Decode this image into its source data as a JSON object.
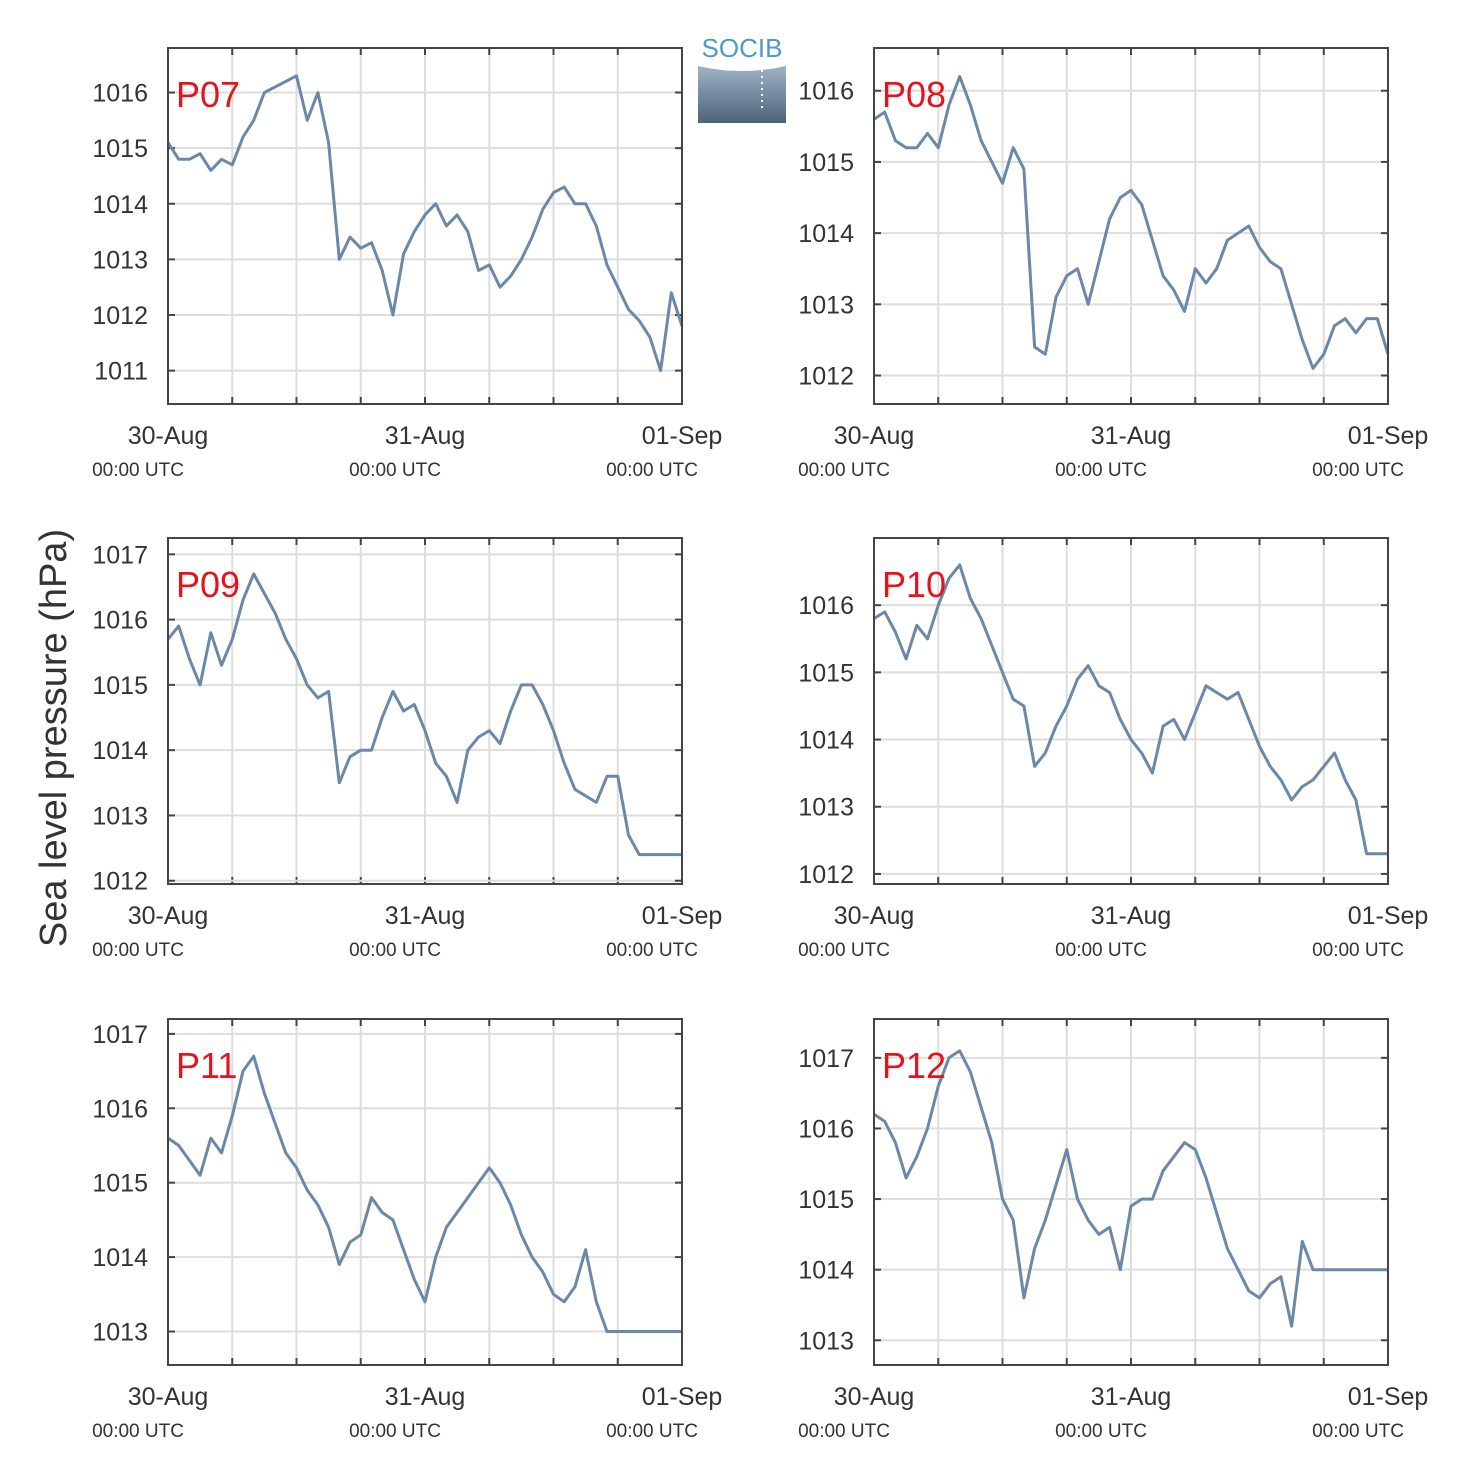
{
  "logo": {
    "text": "SOCIB"
  },
  "chart_data": {
    "type": "line",
    "ylabel": "Sea level pressure (hPa)",
    "line_color": "#6a89a8",
    "grid": true,
    "x_ticks": [
      {
        "date": "30-Aug",
        "time": "00:00 UTC"
      },
      {
        "date": "31-Aug",
        "time": "00:00 UTC"
      },
      {
        "date": "01-Sep",
        "time": "00:00 UTC"
      }
    ],
    "x_range": [
      "2030-08-30T00:00",
      "2030-09-01T00:00"
    ],
    "panels": [
      {
        "name": "P07",
        "ylim": [
          1010.4,
          1016.8
        ],
        "yticks": [
          1011,
          1012,
          1013,
          1014,
          1015,
          1016
        ],
        "x_hours": [
          0,
          1,
          2,
          3,
          4,
          5,
          6,
          7,
          8,
          9,
          10,
          11,
          12,
          13,
          14,
          15,
          16,
          17,
          18,
          19,
          20,
          21,
          22,
          23,
          24,
          25,
          26,
          27,
          28,
          29,
          30,
          31,
          32,
          33,
          34,
          35,
          36,
          37,
          38,
          39,
          40,
          41,
          42,
          43,
          44,
          45,
          46,
          47,
          48
        ],
        "values": [
          1015.1,
          1014.8,
          1014.8,
          1014.9,
          1014.6,
          1014.8,
          1014.7,
          1015.2,
          1015.5,
          1016.0,
          1016.1,
          1016.2,
          1016.3,
          1015.5,
          1016.0,
          1015.1,
          1013.0,
          1013.4,
          1013.2,
          1013.3,
          1012.8,
          1012.0,
          1013.1,
          1013.5,
          1013.8,
          1014.0,
          1013.6,
          1013.8,
          1013.5,
          1012.8,
          1012.9,
          1012.5,
          1012.7,
          1013.0,
          1013.4,
          1013.9,
          1014.2,
          1014.3,
          1014.0,
          1014.0,
          1013.6,
          1012.9,
          1012.5,
          1012.1,
          1011.9,
          1011.6,
          1011.0,
          1012.4,
          1011.8
        ]
      },
      {
        "name": "P08",
        "ylim": [
          1011.6,
          1016.6
        ],
        "yticks": [
          1012,
          1013,
          1014,
          1015,
          1016
        ],
        "x_hours": [
          0,
          1,
          2,
          3,
          4,
          5,
          6,
          7,
          8,
          9,
          10,
          11,
          12,
          13,
          14,
          15,
          16,
          17,
          18,
          19,
          20,
          21,
          22,
          23,
          24,
          25,
          26,
          27,
          28,
          29,
          30,
          31,
          32,
          33,
          34,
          35,
          36,
          37,
          38,
          39,
          40,
          41,
          42,
          43,
          44,
          45,
          46,
          47,
          48
        ],
        "values": [
          1015.6,
          1015.7,
          1015.3,
          1015.2,
          1015.2,
          1015.4,
          1015.2,
          1015.8,
          1016.2,
          1015.8,
          1015.3,
          1015.0,
          1014.7,
          1015.2,
          1014.9,
          1012.4,
          1012.3,
          1013.1,
          1013.4,
          1013.5,
          1013.0,
          1013.6,
          1014.2,
          1014.5,
          1014.6,
          1014.4,
          1013.9,
          1013.4,
          1013.2,
          1012.9,
          1013.5,
          1013.3,
          1013.5,
          1013.9,
          1014.0,
          1014.1,
          1013.8,
          1013.6,
          1013.5,
          1013.0,
          1012.5,
          1012.1,
          1012.3,
          1012.7,
          1012.8,
          1012.6,
          1012.8,
          1012.8,
          1012.3
        ]
      },
      {
        "name": "P09",
        "ylim": [
          1011.95,
          1017.25
        ],
        "yticks": [
          1012,
          1013,
          1014,
          1015,
          1016,
          1017
        ],
        "x_hours": [
          0,
          1,
          2,
          3,
          4,
          5,
          6,
          7,
          8,
          9,
          10,
          11,
          12,
          13,
          14,
          15,
          16,
          17,
          18,
          19,
          20,
          21,
          22,
          23,
          24,
          25,
          26,
          27,
          28,
          29,
          30,
          31,
          32,
          33,
          34,
          35,
          36,
          37,
          38,
          39,
          40,
          41,
          42,
          43,
          44,
          45,
          46,
          47,
          48
        ],
        "values": [
          1015.7,
          1015.9,
          1015.4,
          1015.0,
          1015.8,
          1015.3,
          1015.7,
          1016.3,
          1016.7,
          1016.4,
          1016.1,
          1015.7,
          1015.4,
          1015.0,
          1014.8,
          1014.9,
          1013.5,
          1013.9,
          1014.0,
          1014.0,
          1014.5,
          1014.9,
          1014.6,
          1014.7,
          1014.3,
          1013.8,
          1013.6,
          1013.2,
          1014.0,
          1014.2,
          1014.3,
          1014.1,
          1014.6,
          1015.0,
          1015.0,
          1014.7,
          1014.3,
          1013.8,
          1013.4,
          1013.3,
          1013.2,
          1013.6,
          1013.6,
          1012.7,
          1012.4,
          1012.4,
          1012.4,
          1012.4,
          1012.4
        ]
      },
      {
        "name": "P10",
        "ylim": [
          1011.85,
          1017.0
        ],
        "yticks": [
          1012,
          1013,
          1014,
          1015,
          1016
        ],
        "x_hours": [
          0,
          1,
          2,
          3,
          4,
          5,
          6,
          7,
          8,
          9,
          10,
          11,
          12,
          13,
          14,
          15,
          16,
          17,
          18,
          19,
          20,
          21,
          22,
          23,
          24,
          25,
          26,
          27,
          28,
          29,
          30,
          31,
          32,
          33,
          34,
          35,
          36,
          37,
          38,
          39,
          40,
          41,
          42,
          43,
          44,
          45,
          46,
          47,
          48
        ],
        "values": [
          1015.8,
          1015.9,
          1015.6,
          1015.2,
          1015.7,
          1015.5,
          1016.0,
          1016.4,
          1016.6,
          1016.1,
          1015.8,
          1015.4,
          1015.0,
          1014.6,
          1014.5,
          1013.6,
          1013.8,
          1014.2,
          1014.5,
          1014.9,
          1015.1,
          1014.8,
          1014.7,
          1014.3,
          1014.0,
          1013.8,
          1013.5,
          1014.2,
          1014.3,
          1014.0,
          1014.4,
          1014.8,
          1014.7,
          1014.6,
          1014.7,
          1014.3,
          1013.9,
          1013.6,
          1013.4,
          1013.1,
          1013.3,
          1013.4,
          1013.6,
          1013.8,
          1013.4,
          1013.1,
          1012.3,
          1012.3,
          1012.3
        ]
      },
      {
        "name": "P11",
        "ylim": [
          1012.55,
          1017.2
        ],
        "yticks": [
          1013,
          1014,
          1015,
          1016,
          1017
        ],
        "x_hours": [
          0,
          1,
          2,
          3,
          4,
          5,
          6,
          7,
          8,
          9,
          10,
          11,
          12,
          13,
          14,
          15,
          16,
          17,
          18,
          19,
          20,
          21,
          22,
          23,
          24,
          25,
          26,
          27,
          28,
          29,
          30,
          31,
          32,
          33,
          34,
          35,
          36,
          37,
          38,
          39,
          40,
          41,
          42,
          43,
          44,
          45,
          46,
          47,
          48
        ],
        "values": [
          1015.6,
          1015.5,
          1015.3,
          1015.1,
          1015.6,
          1015.4,
          1015.9,
          1016.5,
          1016.7,
          1016.2,
          1015.8,
          1015.4,
          1015.2,
          1014.9,
          1014.7,
          1014.4,
          1013.9,
          1014.2,
          1014.3,
          1014.8,
          1014.6,
          1014.5,
          1014.1,
          1013.7,
          1013.4,
          1014.0,
          1014.4,
          1014.6,
          1014.8,
          1015.0,
          1015.2,
          1015.0,
          1014.7,
          1014.3,
          1014.0,
          1013.8,
          1013.5,
          1013.4,
          1013.6,
          1014.1,
          1013.4,
          1013.0,
          1013.0,
          1013.0,
          1013.0,
          1013.0,
          1013.0,
          1013.0,
          1013.0
        ]
      },
      {
        "name": "P12",
        "ylim": [
          1012.65,
          1017.55
        ],
        "yticks": [
          1013,
          1014,
          1015,
          1016,
          1017
        ],
        "x_hours": [
          0,
          1,
          2,
          3,
          4,
          5,
          6,
          7,
          8,
          9,
          10,
          11,
          12,
          13,
          14,
          15,
          16,
          17,
          18,
          19,
          20,
          21,
          22,
          23,
          24,
          25,
          26,
          27,
          28,
          29,
          30,
          31,
          32,
          33,
          34,
          35,
          36,
          37,
          38,
          39,
          40,
          41,
          42,
          43,
          44,
          45,
          46,
          47,
          48
        ],
        "values": [
          1016.2,
          1016.1,
          1015.8,
          1015.3,
          1015.6,
          1016.0,
          1016.6,
          1017.0,
          1017.1,
          1016.8,
          1016.3,
          1015.8,
          1015.0,
          1014.7,
          1013.6,
          1014.3,
          1014.7,
          1015.2,
          1015.7,
          1015.0,
          1014.7,
          1014.5,
          1014.6,
          1014.0,
          1014.9,
          1015.0,
          1015.0,
          1015.4,
          1015.6,
          1015.8,
          1015.7,
          1015.3,
          1014.8,
          1014.3,
          1014.0,
          1013.7,
          1013.6,
          1013.8,
          1013.9,
          1013.2,
          1014.4,
          1014.0,
          1014.0,
          1014.0,
          1014.0,
          1014.0,
          1014.0,
          1014.0,
          1014.0
        ]
      }
    ]
  }
}
